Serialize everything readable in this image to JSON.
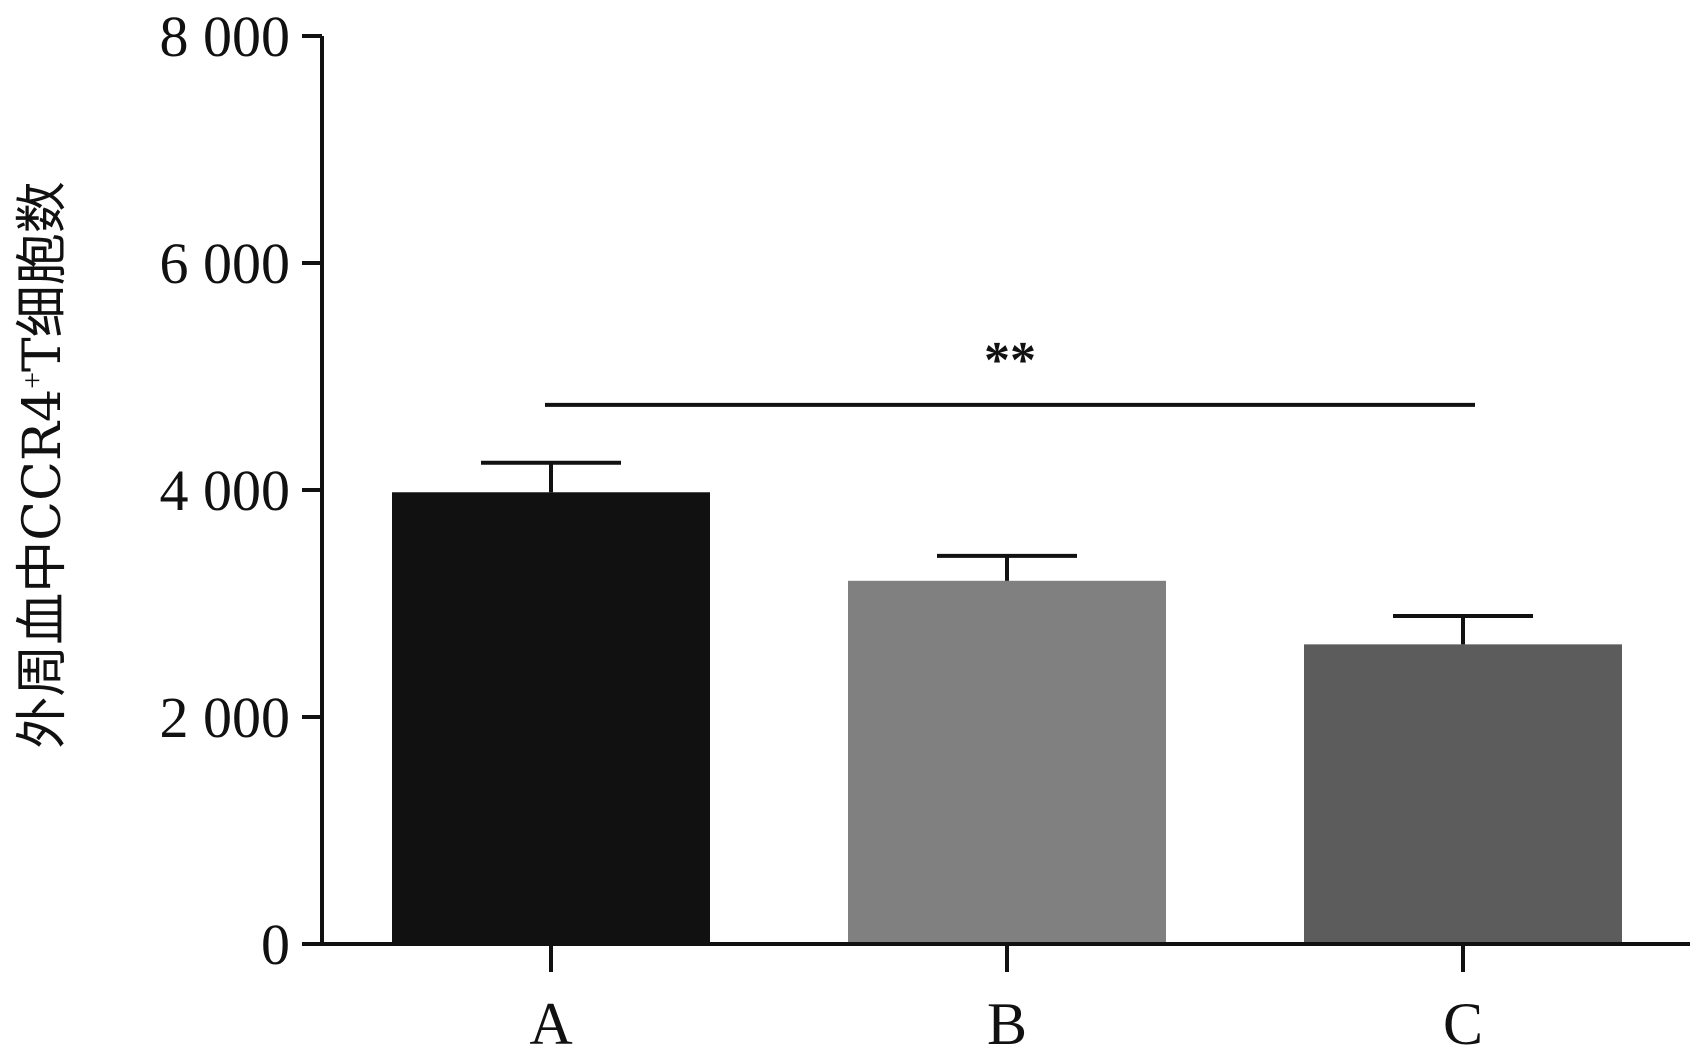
{
  "chart_data": {
    "type": "bar",
    "categories": [
      "A",
      "B",
      "C"
    ],
    "values": [
      3980,
      3200,
      2640
    ],
    "errors": [
      260,
      220,
      250
    ],
    "colors": [
      "#111111",
      "#808080",
      "#5c5c5c"
    ],
    "ylabel": {
      "before": "外周血中CCR4",
      "sup": "+",
      "after": "T细胞数"
    },
    "ylim": [
      0,
      8000
    ],
    "yticks": [
      0,
      2000,
      4000,
      6000,
      8000
    ],
    "ytick_labels": [
      "0",
      "2 000",
      "4 000",
      "6 000",
      "8 000"
    ],
    "grid": false,
    "legend": "none",
    "significance": {
      "label": "**",
      "from": "A",
      "to": "C",
      "y": 4750
    }
  }
}
